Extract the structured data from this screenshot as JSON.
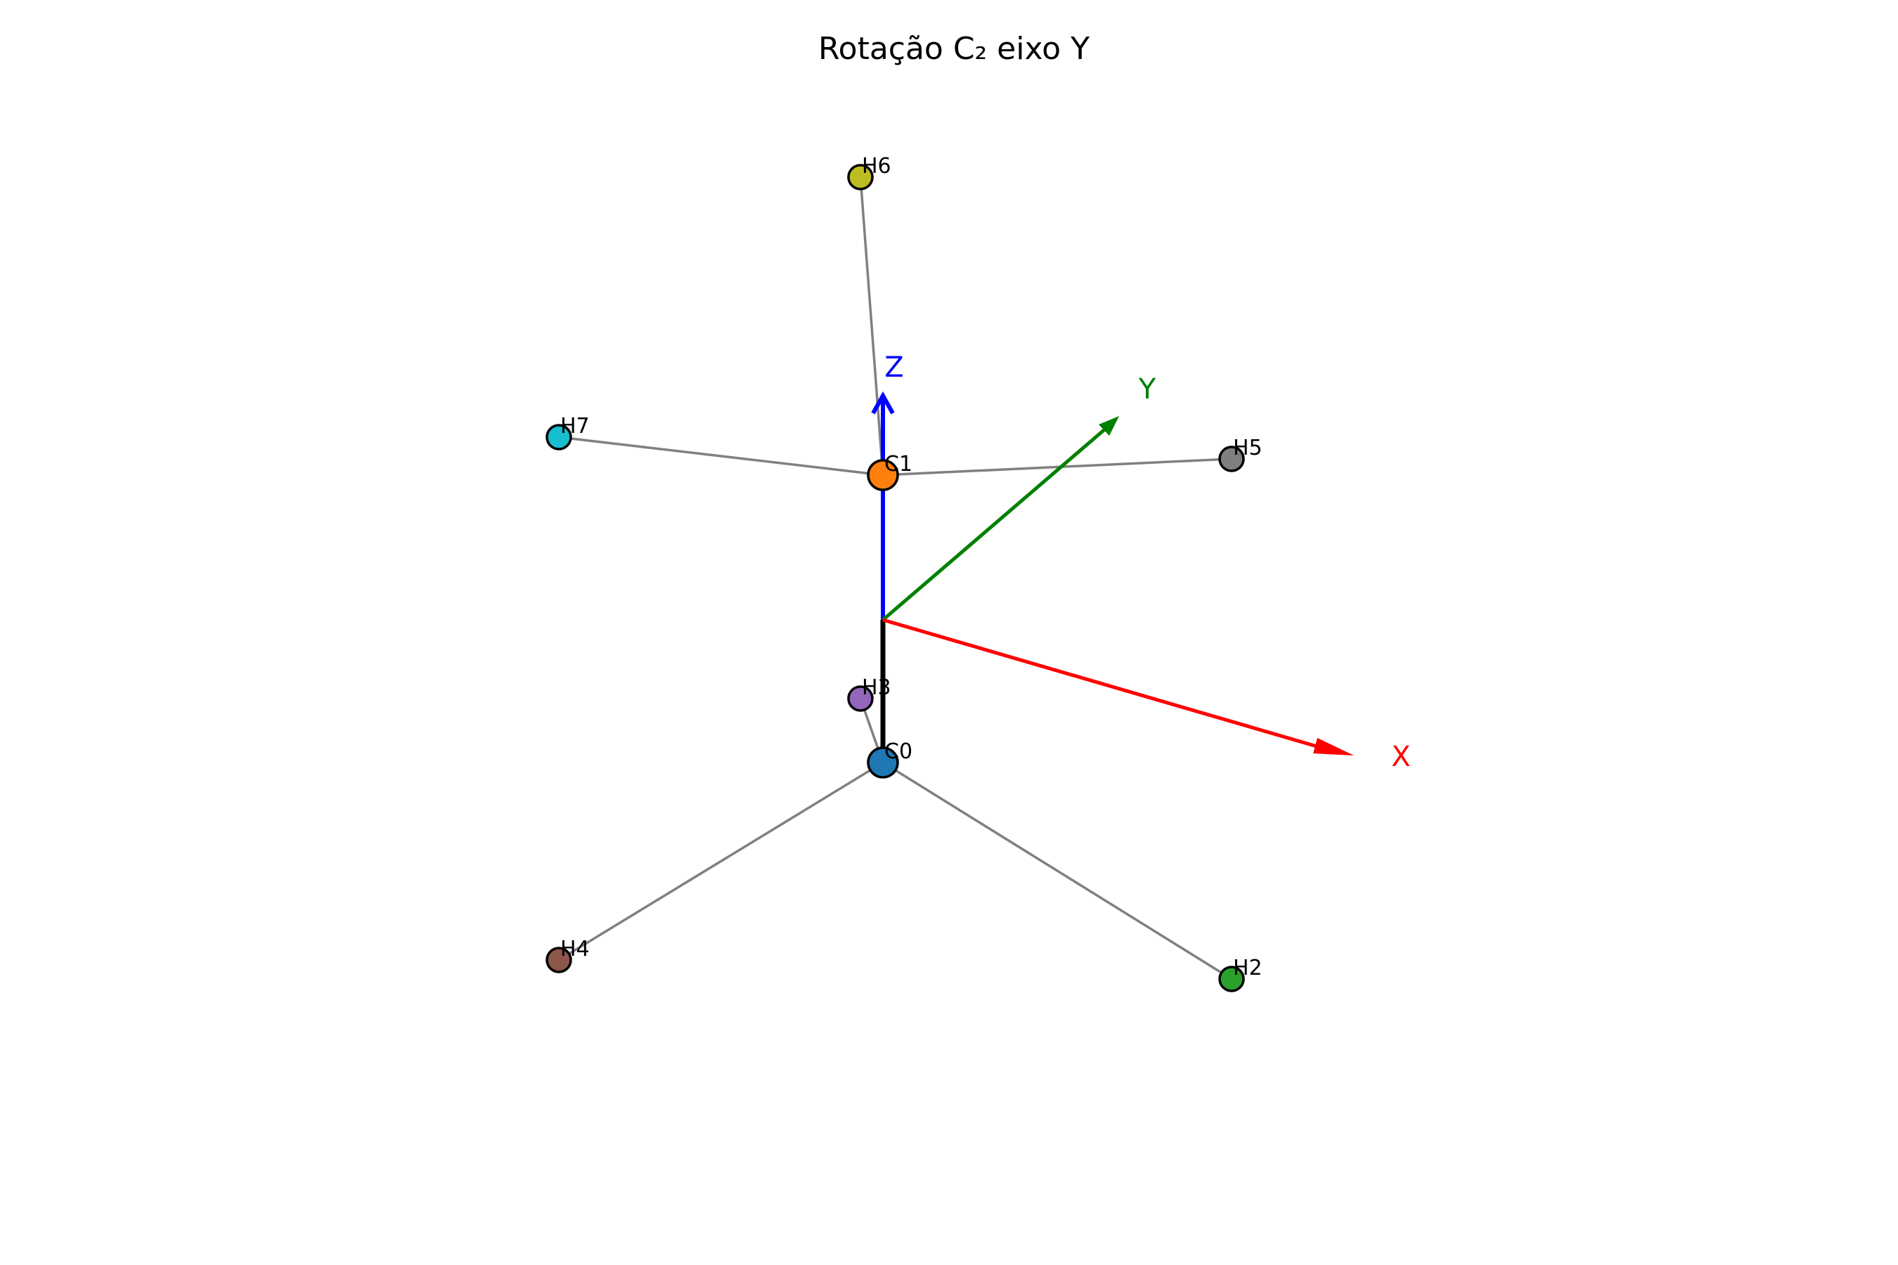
{
  "title": "Rotação C₂ eixo Y",
  "bond_color": "#808080",
  "axes": [
    {
      "key": "x",
      "label": "X",
      "color": "#ff0000"
    },
    {
      "key": "y",
      "label": "Y",
      "color": "#008000"
    },
    {
      "key": "z",
      "label": "Z",
      "color": "#0000ff"
    }
  ],
  "rotation_axis_color": "#000000",
  "atoms": [
    {
      "id": "C0",
      "label": "C0",
      "color": "#1f77b4"
    },
    {
      "id": "C1",
      "label": "C1",
      "color": "#ff7f0e"
    },
    {
      "id": "H2",
      "label": "H2",
      "color": "#2ca02c"
    },
    {
      "id": "H3",
      "label": "H3",
      "color": "#9467bd"
    },
    {
      "id": "H4",
      "label": "H4",
      "color": "#8c564b"
    },
    {
      "id": "H5",
      "label": "H5",
      "color": "#7f7f7f"
    },
    {
      "id": "H6",
      "label": "H6",
      "color": "#bcbd22"
    },
    {
      "id": "H7",
      "label": "H7",
      "color": "#17becf"
    }
  ],
  "bonds": [
    [
      "C0",
      "C1"
    ],
    [
      "C0",
      "H2"
    ],
    [
      "C0",
      "H3"
    ],
    [
      "C0",
      "H4"
    ],
    [
      "C1",
      "H5"
    ],
    [
      "C1",
      "H6"
    ],
    [
      "C1",
      "H7"
    ]
  ]
}
